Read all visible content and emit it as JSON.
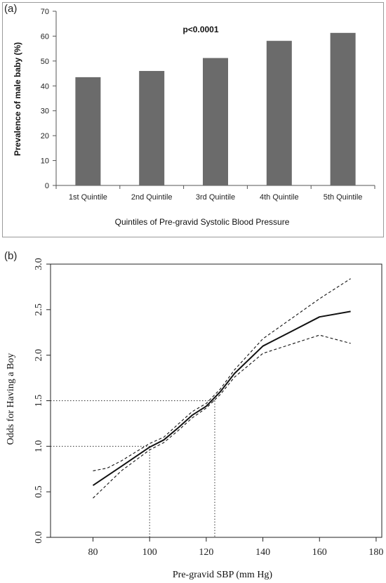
{
  "panel_a_label": "(a)",
  "panel_b_label": "(b)",
  "chart_data": [
    {
      "type": "bar",
      "annotation": "p<0.0001",
      "categories": [
        "1st Quintile",
        "2nd Quintile",
        "3rd Quintile",
        "4th Quintile",
        "5th Quintile"
      ],
      "values": [
        43.5,
        46,
        51.2,
        58.1,
        61.3
      ],
      "xlabel": "Quintiles of Pre-gravid Systolic Blood Pressure",
      "ylabel": "Prevalence of male baby  (%)",
      "ylim": [
        0,
        70
      ],
      "yticks": [
        "0",
        "10",
        "20",
        "30",
        "40",
        "50",
        "60",
        "70"
      ],
      "bar_color": "#6b6b6b",
      "grid": false
    },
    {
      "type": "line",
      "xlabel": "Pre-gravid SBP (mm Hg)",
      "ylabel": "Odds for Having a Boy",
      "xlim": [
        65,
        182
      ],
      "ylim": [
        0.0,
        3.0
      ],
      "xticks": [
        "80",
        "100",
        "120",
        "140",
        "160",
        "180"
      ],
      "yticks": [
        "0.0",
        "0.5",
        "1.0",
        "1.5",
        "2.0",
        "2.5",
        "3.0"
      ],
      "series": [
        {
          "style": "solid",
          "x": [
            80,
            90,
            100,
            105,
            110,
            115,
            120,
            125,
            130,
            140,
            150,
            160,
            171
          ],
          "y": [
            0.57,
            0.78,
            0.99,
            1.07,
            1.2,
            1.34,
            1.44,
            1.6,
            1.8,
            2.1,
            2.26,
            2.42,
            2.48
          ]
        },
        {
          "style": "dashed",
          "x": [
            80,
            85,
            90,
            100,
            105,
            110,
            115,
            120,
            125,
            130,
            140,
            150,
            160,
            171
          ],
          "y": [
            0.73,
            0.76,
            0.84,
            1.03,
            1.1,
            1.24,
            1.38,
            1.47,
            1.63,
            1.84,
            2.18,
            2.4,
            2.62,
            2.84
          ]
        },
        {
          "style": "dashed",
          "x": [
            80,
            90,
            100,
            105,
            110,
            115,
            120,
            125,
            130,
            140,
            150,
            160,
            171
          ],
          "y": [
            0.43,
            0.73,
            0.96,
            1.04,
            1.17,
            1.31,
            1.42,
            1.57,
            1.76,
            2.02,
            2.12,
            2.22,
            2.13
          ]
        }
      ],
      "reference_lines": [
        {
          "x": 100,
          "y": 1.0
        },
        {
          "x": 123,
          "y": 1.5
        }
      ],
      "grid": false
    }
  ]
}
